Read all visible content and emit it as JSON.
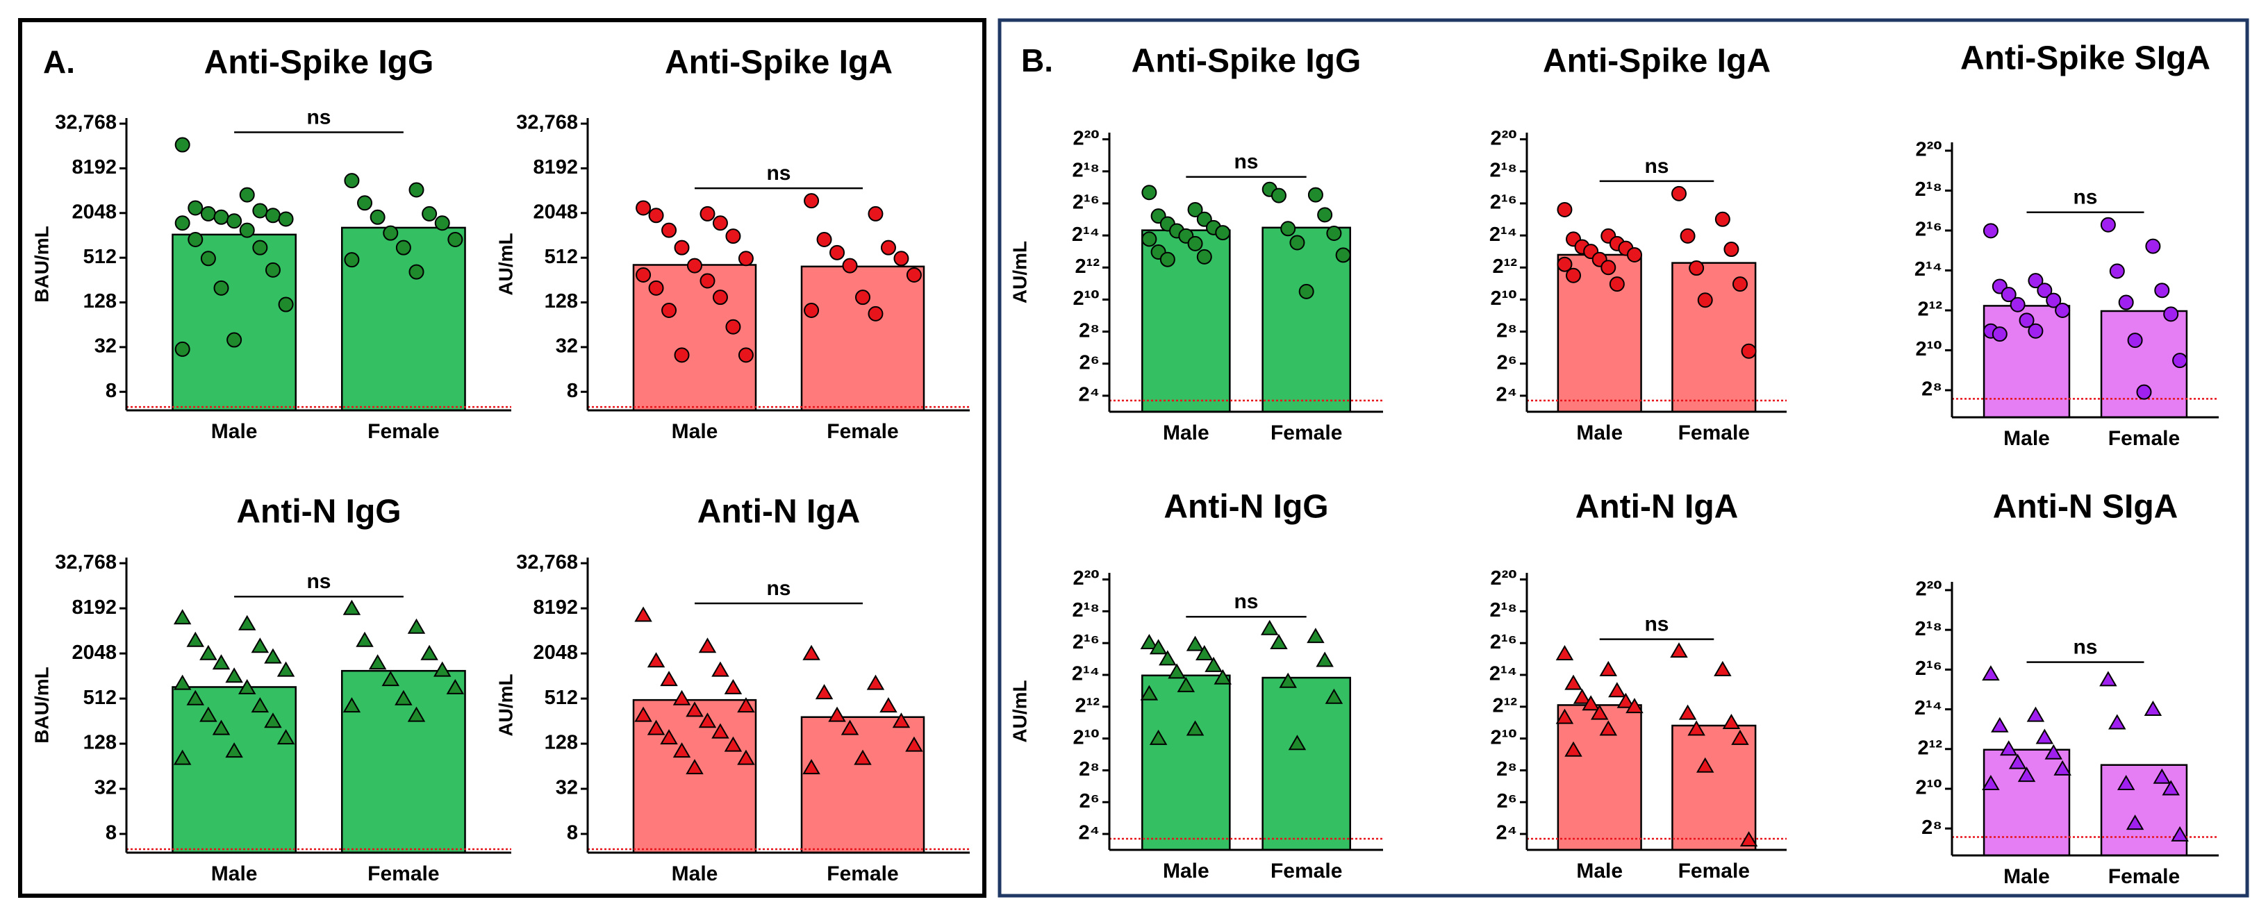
{
  "chart_data": [
    {
      "type": "bar",
      "panel_label": "A.",
      "title": "Anti-Spike IgG",
      "ylabel": "BAU/mL",
      "categories": [
        "Male",
        "Female"
      ],
      "values": [
        1050,
        1300
      ],
      "color": "#34bf62",
      "point_color": "#1f8a2c",
      "marker": "circle",
      "points": [
        [
          17000,
          3600,
          2400,
          2200,
          2000,
          1900,
          1800,
          1700,
          1600,
          1500,
          1200,
          900,
          700,
          500,
          350,
          200,
          120,
          40,
          30
        ],
        [
          5600,
          4200,
          2800,
          2000,
          1800,
          1500,
          1100,
          900,
          700,
          480,
          330
        ]
      ],
      "annotation": "ns",
      "reference_line": 5,
      "reference_color": "#e8141b",
      "yscale": "log",
      "log_base": 2,
      "ylim": [
        4.5,
        39000
      ],
      "yticks": [
        8,
        32,
        128,
        512,
        2048,
        8192,
        {
          "value": 32768,
          "label": "32,768"
        }
      ]
    },
    {
      "type": "bar",
      "title": "Anti-Spike IgA",
      "ylabel": "AU/mL",
      "categories": [
        "Male",
        "Female"
      ],
      "values": [
        410,
        390
      ],
      "color": "#ff7b7b",
      "point_color": "#e8141b",
      "marker": "circle",
      "points": [
        [
          2400,
          2000,
          1900,
          1500,
          1200,
          1000,
          700,
          500,
          400,
          300,
          250,
          200,
          150,
          100,
          60,
          25,
          25
        ],
        [
          3000,
          2000,
          900,
          700,
          600,
          500,
          400,
          300,
          150,
          100,
          90
        ]
      ],
      "annotation": "ns",
      "reference_line": 5,
      "reference_color": "#e8141b",
      "yscale": "log",
      "log_base": 2,
      "ylim": [
        4.5,
        39000
      ],
      "yticks": [
        8,
        32,
        128,
        512,
        2048,
        8192,
        {
          "value": 32768,
          "label": "32,768"
        }
      ]
    },
    {
      "type": "bar",
      "title": "Anti-N IgG",
      "ylabel": "BAU/mL",
      "categories": [
        "Male",
        "Female"
      ],
      "values": [
        730,
        1200
      ],
      "color": "#34bf62",
      "point_color": "#1f8a2c",
      "marker": "triangle",
      "points": [
        [
          6000,
          5000,
          3000,
          2500,
          2000,
          1800,
          1500,
          1200,
          1000,
          800,
          700,
          500,
          400,
          300,
          250,
          200,
          150,
          100,
          80
        ],
        [
          8000,
          4500,
          3000,
          2000,
          1500,
          1200,
          900,
          700,
          500,
          400,
          300
        ]
      ],
      "annotation": "ns",
      "reference_line": 5,
      "reference_color": "#e8141b",
      "yscale": "log",
      "log_base": 2,
      "ylim": [
        4.5,
        39000
      ],
      "yticks": [
        8,
        32,
        128,
        512,
        2048,
        8192,
        {
          "value": 32768,
          "label": "32,768"
        }
      ]
    },
    {
      "type": "bar",
      "title": "Anti-N IgA",
      "ylabel": "AU/mL",
      "categories": [
        "Male",
        "Female"
      ],
      "values": [
        490,
        290
      ],
      "color": "#ff7b7b",
      "point_color": "#e8141b",
      "marker": "triangle",
      "points": [
        [
          6500,
          2500,
          1600,
          1200,
          900,
          700,
          500,
          400,
          350,
          300,
          250,
          200,
          180,
          150,
          120,
          100,
          80,
          60
        ],
        [
          2000,
          800,
          600,
          400,
          300,
          250,
          200,
          120,
          80,
          60
        ]
      ],
      "annotation": "ns",
      "reference_line": 5,
      "reference_color": "#e8141b",
      "yscale": "log",
      "log_base": 2,
      "ylim": [
        4.5,
        39000
      ],
      "yticks": [
        8,
        32,
        128,
        512,
        2048,
        8192,
        {
          "value": 32768,
          "label": "32,768"
        }
      ]
    },
    {
      "type": "bar",
      "panel_label": "B.",
      "title": "Anti-Spike IgG",
      "ylabel": "AU/mL",
      "categories": [
        "Male",
        "Female"
      ],
      "values": [
        20500,
        23000
      ],
      "color": "#34bf62",
      "point_color": "#1f8a2c",
      "marker": "circle",
      "points": [
        [
          105000,
          50000,
          38000,
          33000,
          27000,
          23000,
          20000,
          18500,
          16000,
          14000,
          11500,
          8000,
          6500,
          5800
        ],
        [
          120000,
          95000,
          92000,
          40000,
          22000,
          18000,
          12000,
          7000,
          1450
        ]
      ],
      "annotation": "ns",
      "reference_line": 13,
      "reference_color": "#e8141b",
      "yscale": "log",
      "log_base": 2,
      "ylim": [
        8,
        1400000
      ],
      "yticks": [
        {
          "value": 16,
          "label": "2⁴"
        },
        {
          "value": 64,
          "label": "2⁶"
        },
        {
          "value": 256,
          "label": "2⁸"
        },
        {
          "value": 1024,
          "label": "2¹⁰"
        },
        {
          "value": 4096,
          "label": "2¹²"
        },
        {
          "value": 16384,
          "label": "2¹⁴"
        },
        {
          "value": 65536,
          "label": "2¹⁶"
        },
        {
          "value": 262144,
          "label": "2¹⁸"
        },
        {
          "value": 1048576,
          "label": "2²⁰"
        }
      ]
    },
    {
      "type": "bar",
      "title": "Anti-Spike IgA",
      "categories": [
        "Male",
        "Female"
      ],
      "values": [
        7100,
        5000
      ],
      "color": "#ff7b7b",
      "point_color": "#e8141b",
      "marker": "circle",
      "points": [
        [
          50000,
          16000,
          14000,
          11500,
          10000,
          9400,
          8200,
          7100,
          5800,
          4700,
          4100,
          2900,
          2000
        ],
        [
          100000,
          33000,
          16000,
          9000,
          4000,
          2000,
          1000,
          110
        ]
      ],
      "annotation": "ns",
      "reference_line": 13,
      "reference_color": "#e8141b",
      "yscale": "log",
      "log_base": 2,
      "ylim": [
        8,
        1400000
      ],
      "yticks": [
        {
          "value": 16,
          "label": "2⁴"
        },
        {
          "value": 64,
          "label": "2⁶"
        },
        {
          "value": 256,
          "label": "2⁸"
        },
        {
          "value": 1024,
          "label": "2¹⁰"
        },
        {
          "value": 4096,
          "label": "2¹²"
        },
        {
          "value": 16384,
          "label": "2¹⁴"
        },
        {
          "value": 65536,
          "label": "2¹⁶"
        },
        {
          "value": 262144,
          "label": "2¹⁸"
        },
        {
          "value": 1048576,
          "label": "2²⁰"
        }
      ]
    },
    {
      "type": "bar",
      "title": "Anti-Spike SIgA",
      "categories": [
        "Male",
        "Female"
      ],
      "values": [
        4800,
        4000
      ],
      "color": "#e57ef5",
      "point_color": "#a020f0",
      "marker": "circle",
      "points": [
        [
          65000,
          11500,
          9400,
          8200,
          7100,
          5800,
          5000,
          4100,
          2900,
          2000,
          2000,
          1800
        ],
        [
          80000,
          38000,
          16000,
          8200,
          5400,
          3600,
          1450,
          720,
          240
        ]
      ],
      "annotation": "ns",
      "reference_line": 190,
      "reference_color": "#e8141b",
      "yscale": "log",
      "log_base": 2,
      "ylim": [
        100,
        1400000
      ],
      "yticks": [
        {
          "value": 256,
          "label": "2⁸"
        },
        {
          "value": 1024,
          "label": "2¹⁰"
        },
        {
          "value": 4096,
          "label": "2¹²"
        },
        {
          "value": 16384,
          "label": "2¹⁴"
        },
        {
          "value": 65536,
          "label": "2¹⁶"
        },
        {
          "value": 262144,
          "label": "2¹⁸"
        },
        {
          "value": 1048576,
          "label": "2²⁰"
        }
      ]
    },
    {
      "type": "bar",
      "title": "Anti-N IgG",
      "ylabel": "AU/mL",
      "categories": [
        "Male",
        "Female"
      ],
      "values": [
        16000,
        14500
      ],
      "color": "#34bf62",
      "point_color": "#1f8a2c",
      "marker": "triangle",
      "points": [
        [
          65000,
          60000,
          52000,
          40000,
          32000,
          24000,
          18000,
          14000,
          10000,
          7000,
          1500,
          1000
        ],
        [
          120000,
          85000,
          65000,
          30000,
          12000,
          6000,
          800
        ]
      ],
      "annotation": "ns",
      "reference_line": 13,
      "reference_color": "#e8141b",
      "yscale": "log",
      "log_base": 2,
      "ylim": [
        8,
        1400000
      ],
      "yticks": [
        {
          "value": 16,
          "label": "2⁴"
        },
        {
          "value": 64,
          "label": "2⁶"
        },
        {
          "value": 256,
          "label": "2⁸"
        },
        {
          "value": 1024,
          "label": "2¹⁰"
        },
        {
          "value": 4096,
          "label": "2¹²"
        },
        {
          "value": 16384,
          "label": "2¹⁴"
        },
        {
          "value": 65536,
          "label": "2¹⁶"
        },
        {
          "value": 262144,
          "label": "2¹⁸"
        },
        {
          "value": 1048576,
          "label": "2²⁰"
        }
      ]
    },
    {
      "type": "bar",
      "title": "Anti-N IgA",
      "categories": [
        "Male",
        "Female"
      ],
      "values": [
        4400,
        1800
      ],
      "color": "#ff7b7b",
      "point_color": "#e8141b",
      "marker": "triangle",
      "points": [
        [
          40000,
          20000,
          11000,
          8000,
          6000,
          5000,
          4500,
          4000,
          3000,
          2500,
          1500,
          600
        ],
        [
          45000,
          20000,
          3000,
          2000,
          1500,
          1000,
          300,
          12
        ]
      ],
      "annotation": "ns",
      "reference_line": 13,
      "reference_color": "#e8141b",
      "yscale": "log",
      "log_base": 2,
      "ylim": [
        8,
        1400000
      ],
      "yticks": [
        {
          "value": 16,
          "label": "2⁴"
        },
        {
          "value": 64,
          "label": "2⁶"
        },
        {
          "value": 256,
          "label": "2⁸"
        },
        {
          "value": 1024,
          "label": "2¹⁰"
        },
        {
          "value": 4096,
          "label": "2¹²"
        },
        {
          "value": 16384,
          "label": "2¹⁴"
        },
        {
          "value": 65536,
          "label": "2¹⁶"
        },
        {
          "value": 262144,
          "label": "2¹⁸"
        },
        {
          "value": 1048576,
          "label": "2²⁰"
        }
      ]
    },
    {
      "type": "bar",
      "title": "Anti-N SIgA",
      "categories": [
        "Male",
        "Female"
      ],
      "values": [
        4000,
        2350
      ],
      "color": "#e57ef5",
      "point_color": "#a020f0",
      "marker": "triangle",
      "points": [
        [
          55000,
          13000,
          9000,
          6000,
          4000,
          3500,
          2500,
          2000,
          1600,
          1200
        ],
        [
          45000,
          16000,
          10000,
          1500,
          1200,
          1000,
          300,
          200
        ]
      ],
      "annotation": "ns",
      "reference_line": 190,
      "reference_color": "#e8141b",
      "yscale": "log",
      "log_base": 2,
      "ylim": [
        100,
        1400000
      ],
      "yticks": [
        {
          "value": 256,
          "label": "2⁸"
        },
        {
          "value": 1024,
          "label": "2¹⁰"
        },
        {
          "value": 4096,
          "label": "2¹²"
        },
        {
          "value": 16384,
          "label": "2¹⁴"
        },
        {
          "value": 65536,
          "label": "2¹⁶"
        },
        {
          "value": 262144,
          "label": "2¹⁸"
        },
        {
          "value": 1048576,
          "label": "2²⁰"
        }
      ]
    }
  ]
}
